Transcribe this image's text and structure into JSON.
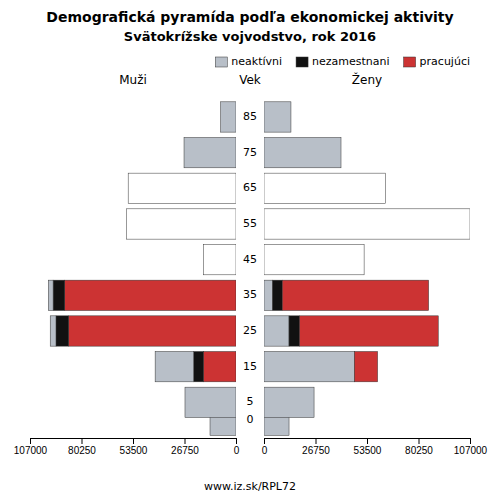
{
  "chart_data": [
    {
      "type": "bar",
      "orientation": "horizontal",
      "stacked": true,
      "title": "Demografická pyramída podľa ekonomickej aktivity",
      "subtitle": "Svätokrížske vojvodstvo, rok 2016",
      "xlabel": "Muži",
      "ylabel": "Vek",
      "annotations": [
        "www.iz.sk/RPL72"
      ],
      "categories": [
        0,
        5,
        15,
        25,
        35,
        45,
        55,
        65,
        75,
        85
      ],
      "series": [
        {
          "name": "pracujúci",
          "color": "#cc3333",
          "values": [
            0,
            0,
            17000,
            87000,
            89000,
            0,
            0,
            0,
            0,
            0
          ]
        },
        {
          "name": "nezamestnani",
          "color": "#111111",
          "values": [
            0,
            0,
            5000,
            6500,
            6000,
            0,
            0,
            0,
            0,
            0
          ]
        },
        {
          "name": "neaktívni",
          "color": "#b8bfc8",
          "colors": [
            "#b8bfc8",
            "#b8bfc8",
            "#b8bfc8",
            "#b8bfc8",
            "#b8bfc8",
            "#ffffff",
            "#ffffff",
            "#ffffff",
            "#b8bfc8",
            "#b8bfc8"
          ],
          "values": [
            13500,
            26500,
            20000,
            3000,
            2500,
            17000,
            57000,
            56000,
            27000,
            8000
          ]
        }
      ],
      "xlim": [
        107000,
        0
      ],
      "xticks": [
        107000,
        80250,
        53500,
        26750,
        0
      ],
      "ylim": [
        -5,
        92
      ]
    },
    {
      "type": "bar",
      "orientation": "horizontal",
      "stacked": true,
      "xlabel": "Ženy",
      "categories": [
        0,
        5,
        15,
        25,
        35,
        45,
        55,
        65,
        75,
        85
      ],
      "series": [
        {
          "name": "neaktívni",
          "color": "#b8bfc8",
          "colors": [
            "#b8bfc8",
            "#b8bfc8",
            "#b8bfc8",
            "#b8bfc8",
            "#b8bfc8",
            "#ffffff",
            "#ffffff",
            "#ffffff",
            "#b8bfc8",
            "#b8bfc8"
          ],
          "values": [
            13000,
            26000,
            47000,
            13000,
            4500,
            52000,
            107000,
            63000,
            40000,
            14000
          ]
        },
        {
          "name": "nezamestnani",
          "color": "#111111",
          "values": [
            0,
            0,
            0,
            5500,
            5000,
            0,
            0,
            0,
            0,
            0
          ]
        },
        {
          "name": "pracujúci",
          "color": "#cc3333",
          "values": [
            0,
            0,
            12000,
            72000,
            76000,
            0,
            0,
            0,
            0,
            0
          ]
        }
      ],
      "xlim": [
        0,
        107000
      ],
      "xticks": [
        0,
        26750,
        53500,
        80250,
        107000
      ],
      "ylim": [
        -5,
        92
      ],
      "legend": "upper right"
    }
  ]
}
